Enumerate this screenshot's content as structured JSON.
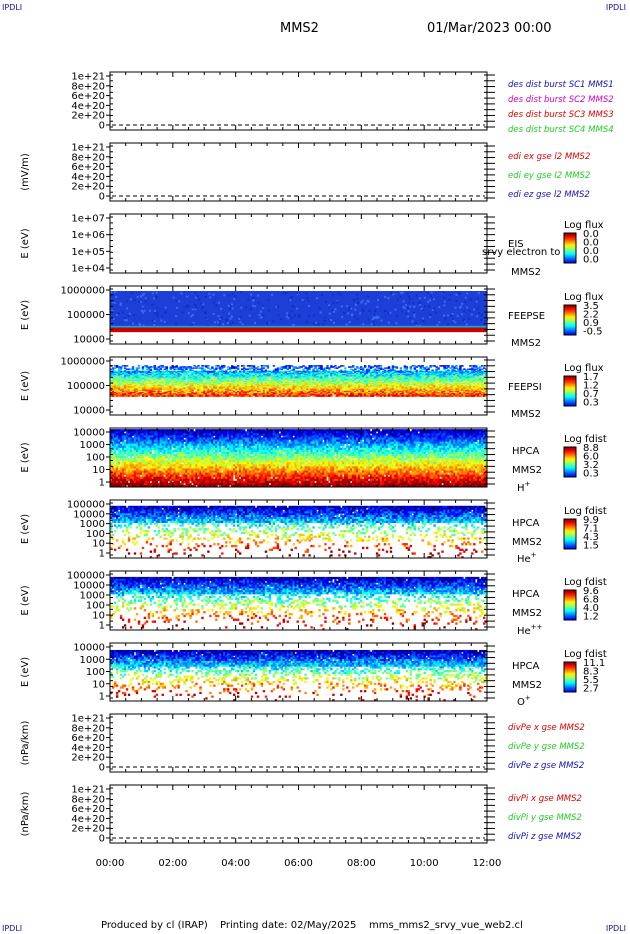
{
  "header": {
    "corner_tl": "IPDLI",
    "corner_tr": "IPDLI",
    "corner_bl": "IPDLI",
    "corner_br": "IPDLI",
    "spacecraft": "MMS2",
    "datetime": "01/Mar/2023 00:00"
  },
  "footer": {
    "produced_by": "Produced by cl (IRAP)",
    "printing_date": "Printing date: 02/May/2025",
    "script": "mms_mms2_srvy_vue_web2.cl"
  },
  "time_axis": {
    "labels": [
      "00:00",
      "02:00",
      "04:00",
      "06:00",
      "08:00",
      "10:00",
      "12:00"
    ]
  },
  "colors": {
    "red": "#dd0000",
    "magenta": "#cc00cc",
    "green": "#22cc22",
    "blue": "#1010c0"
  },
  "chart_data": [
    {
      "type": "line",
      "id": "p1",
      "ylabel": "",
      "ytick_labels": [
        "0",
        "2e+20",
        "4e+20",
        "6e+20",
        "8e+20",
        "1e+21"
      ],
      "ylim": [
        0,
        1e+21
      ],
      "dashed_zero": true,
      "series": [
        {
          "name": "des dist burst SC1 MMS1",
          "color": "#1010c0",
          "values": []
        },
        {
          "name": "des dist burst SC2 MMS2",
          "color": "#cc00cc",
          "values": []
        },
        {
          "name": "des dist burst SC3 MMS3",
          "color": "#dd0000",
          "values": []
        },
        {
          "name": "des dist burst SC4 MMS4",
          "color": "#22cc22",
          "values": []
        }
      ]
    },
    {
      "type": "line",
      "id": "p2",
      "ylabel": "(mV/m)",
      "ytick_labels": [
        "0",
        "2e+20",
        "4e+20",
        "6e+20",
        "8e+20",
        "1e+21"
      ],
      "ylim": [
        0,
        1e+21
      ],
      "dashed_zero": true,
      "series": [
        {
          "name": "edi ex gse l2 MMS2",
          "color": "#dd0000",
          "values": []
        },
        {
          "name": "edi ey gse l2 MMS2",
          "color": "#22cc22",
          "values": []
        },
        {
          "name": "edi ez gse l2 MMS2",
          "color": "#1010c0",
          "values": []
        }
      ]
    },
    {
      "type": "heatmap",
      "id": "p3",
      "ylabel": "E (eV)",
      "ytick_labels": [
        "1e+04",
        "1e+05",
        "1e+06",
        "1e+07"
      ],
      "instrument": "EIS",
      "instrument_sub": "srvy electron to",
      "spacecraft": "MMS2",
      "species": "",
      "colorbar_title": "Log flux",
      "colorbar_ticks": [
        "0.0",
        "0.0",
        "0.0",
        "0.0"
      ],
      "fill": "empty"
    },
    {
      "type": "heatmap",
      "id": "p4",
      "ylabel": "E (eV)",
      "ytick_labels": [
        "10000",
        "100000",
        "1000000"
      ],
      "instrument": "FEEPSE",
      "spacecraft": "MMS2",
      "species": "",
      "colorbar_title": "Log flux",
      "colorbar_ticks": [
        "3.5",
        "2.2",
        "0.9",
        "-0.5"
      ],
      "fill": "feepse"
    },
    {
      "type": "heatmap",
      "id": "p5",
      "ylabel": "E (eV)",
      "ytick_labels": [
        "10000",
        "100000",
        "1000000"
      ],
      "instrument": "FEEPSI",
      "spacecraft": "MMS2",
      "species": "",
      "colorbar_title": "Log flux",
      "colorbar_ticks": [
        "1.7",
        "1.2",
        "0.7",
        "0.3"
      ],
      "fill": "feepsi"
    },
    {
      "type": "heatmap",
      "id": "p6",
      "ylabel": "E (eV)",
      "ytick_labels": [
        "1",
        "10",
        "100",
        "1000",
        "10000"
      ],
      "instrument": "HPCA",
      "spacecraft": "MMS2",
      "species": "H",
      "species_sup": "+",
      "colorbar_title": "Log fdist",
      "colorbar_ticks": [
        "8.8",
        "6.0",
        "3.2",
        "0.3"
      ],
      "fill": "hplus"
    },
    {
      "type": "heatmap",
      "id": "p7",
      "ylabel": "E (eV)",
      "ytick_labels": [
        "1",
        "10",
        "100",
        "1000",
        "10000",
        "100000"
      ],
      "instrument": "HPCA",
      "spacecraft": "MMS2",
      "species": "He",
      "species_sup": "+",
      "colorbar_title": "Log fdist",
      "colorbar_ticks": [
        "9.9",
        "7.1",
        "4.3",
        "1.5"
      ],
      "fill": "heplus"
    },
    {
      "type": "heatmap",
      "id": "p8",
      "ylabel": "E (eV)",
      "ytick_labels": [
        "1",
        "10",
        "100",
        "1000",
        "10000",
        "100000"
      ],
      "instrument": "HPCA",
      "spacecraft": "MMS2",
      "species": "He",
      "species_sup": "++",
      "colorbar_title": "Log fdist",
      "colorbar_ticks": [
        "9.6",
        "6.8",
        "4.0",
        "1.2"
      ],
      "fill": "heplusplus"
    },
    {
      "type": "heatmap",
      "id": "p9",
      "ylabel": "E (eV)",
      "ytick_labels": [
        "1",
        "10",
        "100",
        "1000",
        "10000"
      ],
      "instrument": "HPCA",
      "spacecraft": "MMS2",
      "species": "O",
      "species_sup": "+",
      "colorbar_title": "Log fdist",
      "colorbar_ticks": [
        "11.1",
        "8.3",
        "5.5",
        "2.7"
      ],
      "fill": "oplus"
    },
    {
      "type": "line",
      "id": "p10",
      "ylabel": "(nPa/km)",
      "ytick_labels": [
        "0",
        "2e+20",
        "4e+20",
        "6e+20",
        "8e+20",
        "1e+21"
      ],
      "ylim": [
        0,
        1e+21
      ],
      "dashed_zero": true,
      "series": [
        {
          "name": "divPe x gse MMS2",
          "color": "#dd0000",
          "values": []
        },
        {
          "name": "divPe y gse MMS2",
          "color": "#22cc22",
          "values": []
        },
        {
          "name": "divPe z gse MMS2",
          "color": "#1010c0",
          "values": []
        }
      ]
    },
    {
      "type": "line",
      "id": "p11",
      "ylabel": "(nPa/km)",
      "ytick_labels": [
        "0",
        "2e+20",
        "4e+20",
        "6e+20",
        "8e+20",
        "1e+21"
      ],
      "ylim": [
        0,
        1e+21
      ],
      "dashed_zero": true,
      "series": [
        {
          "name": "divPi x gse MMS2",
          "color": "#dd0000",
          "values": []
        },
        {
          "name": "divPi y gse MMS2",
          "color": "#22cc22",
          "values": []
        },
        {
          "name": "divPi z gse MMS2",
          "color": "#1010c0",
          "values": []
        }
      ]
    }
  ]
}
